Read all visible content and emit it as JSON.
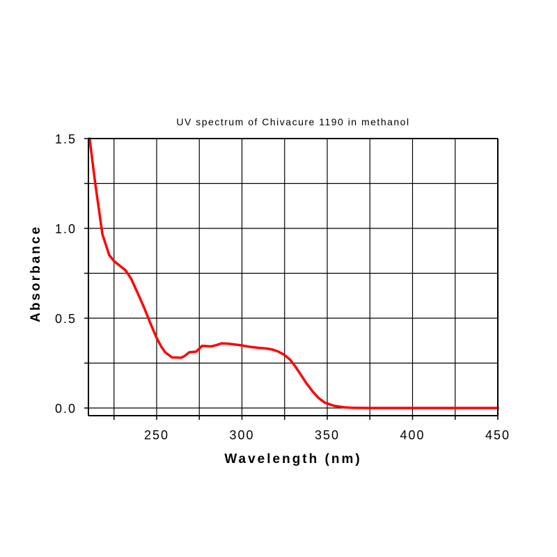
{
  "chart_data": {
    "type": "line",
    "title": "UV spectrum of Chivacure 1190 in methanol",
    "xlabel": "Wavelength (nm)",
    "ylabel": "Absorbance",
    "xlim": [
      210,
      450
    ],
    "ylim": [
      -0.045,
      1.5
    ],
    "xticks": [
      250,
      300,
      350,
      400,
      450
    ],
    "xtick_labels": [
      "250",
      "300",
      "350",
      "400",
      "450"
    ],
    "x_gridlines": [
      225,
      250,
      275,
      300,
      325,
      350,
      375,
      400,
      425,
      450
    ],
    "yticks": [
      0.0,
      0.5,
      1.0,
      1.5
    ],
    "ytick_labels": [
      "0.0",
      "0.5",
      "1.0",
      "1.5"
    ],
    "y_gridlines": [
      0.0,
      0.25,
      0.5,
      0.75,
      1.0,
      1.25,
      1.5
    ],
    "grid": true,
    "series": [
      {
        "name": "Chivacure 1190",
        "color": "#ff0000",
        "x": [
          210.7,
          214,
          218.2,
          222.2,
          225,
          231.7,
          235,
          239.9,
          243,
          246.7,
          250,
          252.8,
          255,
          258.9,
          264.3,
          266.5,
          269.1,
          273.2,
          276.6,
          282,
          285,
          288.1,
          292,
          299.7,
          305,
          310,
          314.6,
          318,
          321.4,
          325,
          328.2,
          331,
          335,
          338,
          341.8,
          345,
          348.6,
          354,
          360,
          365,
          375,
          400,
          425,
          450
        ],
        "y": [
          1.5,
          1.25,
          0.967,
          0.851,
          0.818,
          0.767,
          0.72,
          0.618,
          0.55,
          0.463,
          0.39,
          0.34,
          0.31,
          0.282,
          0.28,
          0.29,
          0.31,
          0.314,
          0.346,
          0.343,
          0.35,
          0.36,
          0.358,
          0.349,
          0.34,
          0.335,
          0.331,
          0.325,
          0.314,
          0.295,
          0.269,
          0.235,
          0.178,
          0.135,
          0.088,
          0.055,
          0.03,
          0.012,
          0.004,
          0.001,
          0.0,
          0.0,
          0.0,
          0.0
        ]
      }
    ]
  }
}
